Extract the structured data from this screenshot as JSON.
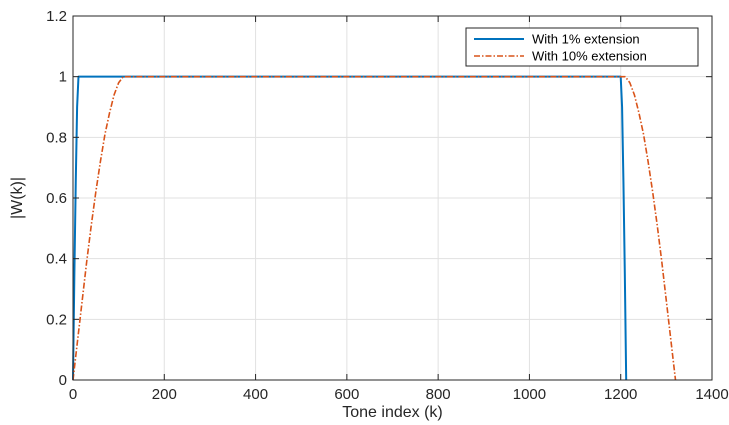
{
  "chart_data": {
    "type": "line",
    "xlabel": "Tone index (k)",
    "ylabel": "|W(k)|",
    "xlim": [
      0,
      1400
    ],
    "ylim": [
      0,
      1.2
    ],
    "xticks": [
      0,
      200,
      400,
      600,
      800,
      1000,
      1200,
      1400
    ],
    "yticks": [
      0,
      0.2,
      0.4,
      0.6,
      0.8,
      1,
      1.2
    ],
    "xtick_labels": [
      "0",
      "200",
      "400",
      "600",
      "800",
      "1000",
      "1200",
      "1400"
    ],
    "ytick_labels": [
      "0",
      "0.2",
      "0.4",
      "0.6",
      "0.8",
      "1",
      "1.2"
    ],
    "grid": true,
    "legend_position": "top-right",
    "series": [
      {
        "name": "With 1% extension",
        "color": "#0072BD",
        "style": "solid",
        "x": [
          0,
          3,
          6,
          9,
          12,
          1200,
          1203,
          1206,
          1209,
          1212
        ],
        "y": [
          0,
          0.35,
          0.65,
          0.9,
          1.0,
          1.0,
          0.9,
          0.65,
          0.35,
          0
        ]
      },
      {
        "name": "With 10% extension",
        "color": "#D95319",
        "style": "dashdot",
        "x": [
          0,
          10,
          20,
          30,
          40,
          50,
          60,
          70,
          80,
          90,
          100,
          110,
          120,
          1200,
          1210,
          1220,
          1230,
          1240,
          1250,
          1260,
          1270,
          1280,
          1290,
          1300,
          1310,
          1320
        ],
        "y": [
          0,
          0.13,
          0.26,
          0.39,
          0.51,
          0.62,
          0.72,
          0.81,
          0.88,
          0.94,
          0.98,
          1.0,
          1.0,
          1.0,
          1.0,
          0.98,
          0.94,
          0.88,
          0.81,
          0.72,
          0.62,
          0.51,
          0.39,
          0.26,
          0.13,
          0
        ]
      }
    ]
  }
}
